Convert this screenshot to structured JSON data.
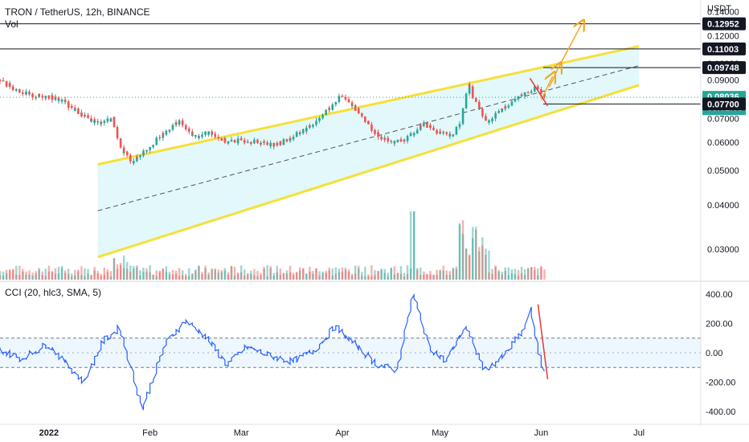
{
  "header": {
    "title": "TRON / TetherUS, 12h, BINANCE",
    "vol_label": "Vol",
    "currency": "USDT"
  },
  "indicator": {
    "label": "CCI (20, hlc3, SMA, 5)"
  },
  "colors": {
    "up": "#26a69a",
    "down": "#ef5350",
    "channel_fill": "#e0f7fa",
    "channel_line": "#f5e03a",
    "cci_line": "#2962ff",
    "arrow": "#f5a623",
    "drawn_red": "#e53935",
    "last_price": "#26a69a"
  },
  "chart_data": [
    {
      "type": "line",
      "title": "TRON / TetherUS, 12h, BINANCE",
      "ylabel": "USDT",
      "ylim": [
        0.025,
        0.145
      ],
      "log_scale": true,
      "y_ticks": [
        "0.14000",
        "0.12000",
        "0.10000",
        "0.09000",
        "0.07000",
        "0.06000",
        "0.05000",
        "0.04000",
        "0.03000"
      ],
      "x_ticks": [
        "2022",
        "Feb",
        "Mar",
        "Apr",
        "May",
        "Jun",
        "Jul"
      ],
      "price_labels": [
        {
          "value": "0.12952",
          "style": "horizontal-line"
        },
        {
          "value": "0.11003",
          "style": "horizontal-line"
        },
        {
          "value": "0.09748",
          "style": "horizontal-line"
        },
        {
          "value": "0.08036",
          "style": "last-price",
          "countdown": "03:02:08"
        },
        {
          "value": "0.07700",
          "style": "horizontal-line"
        }
      ],
      "series": [
        {
          "name": "",
          "x": [
            "2021-12-17",
            "2021-12-22",
            "2021-12-27",
            "2022-01-01",
            "2022-01-06",
            "2022-01-11",
            "2022-01-16",
            "2022-01-21",
            "2022-01-23",
            "2022-01-27",
            "2022-02-01",
            "2022-02-06",
            "2022-02-10",
            "2022-02-15",
            "2022-02-20",
            "2022-02-25",
            "2022-03-02",
            "2022-03-07",
            "2022-03-12",
            "2022-03-17",
            "2022-03-22",
            "2022-03-28",
            "2022-04-01",
            "2022-04-06",
            "2022-04-11",
            "2022-04-16",
            "2022-04-21",
            "2022-04-26",
            "2022-05-01",
            "2022-05-05",
            "2022-05-08",
            "2022-05-10",
            "2022-05-13",
            "2022-05-16",
            "2022-05-20",
            "2022-05-24",
            "2022-05-28",
            "2022-05-31",
            "2022-06-02"
          ],
          "values": [
            0.09,
            0.085,
            0.081,
            0.081,
            0.078,
            0.072,
            0.068,
            0.07,
            0.058,
            0.053,
            0.058,
            0.064,
            0.069,
            0.062,
            0.064,
            0.06,
            0.061,
            0.06,
            0.059,
            0.062,
            0.066,
            0.074,
            0.081,
            0.074,
            0.064,
            0.06,
            0.061,
            0.068,
            0.064,
            0.062,
            0.07,
            0.087,
            0.075,
            0.068,
            0.074,
            0.079,
            0.083,
            0.086,
            0.08
          ]
        }
      ],
      "volume": {
        "name": "Vol",
        "unit": "relative",
        "peaks": [
          "2022-04-23",
          "2022-05-12"
        ]
      },
      "annotations": [
        {
          "type": "rising-channel",
          "from": "2022-01-16",
          "to": "2022-07-01"
        },
        {
          "type": "projection-arrow",
          "from": "0.080",
          "to": "0.12952"
        }
      ]
    },
    {
      "type": "line",
      "title": "CCI (20, hlc3, SMA, 5)",
      "ylim": [
        -400,
        400
      ],
      "y_ticks": [
        "400.00",
        "200.00",
        "0.00",
        "-200.00",
        "-400.00"
      ],
      "bands": [
        100,
        -100
      ],
      "series": [
        {
          "name": "",
          "x": [
            "2021-12-17",
            "2021-12-24",
            "2022-01-01",
            "2022-01-07",
            "2022-01-12",
            "2022-01-18",
            "2022-01-23",
            "2022-01-30",
            "2022-02-06",
            "2022-02-12",
            "2022-02-18",
            "2022-02-25",
            "2022-03-03",
            "2022-03-10",
            "2022-03-17",
            "2022-03-24",
            "2022-03-30",
            "2022-04-06",
            "2022-04-12",
            "2022-04-18",
            "2022-04-23",
            "2022-04-28",
            "2022-05-03",
            "2022-05-09",
            "2022-05-15",
            "2022-05-21",
            "2022-05-27",
            "2022-05-29",
            "2022-06-02"
          ],
          "values": [
            20,
            -40,
            60,
            -80,
            -200,
            80,
            170,
            -380,
            60,
            220,
            120,
            -80,
            40,
            -20,
            -60,
            20,
            180,
            40,
            -80,
            -120,
            400,
            40,
            -60,
            180,
            -120,
            -20,
            160,
            290,
            -150
          ]
        }
      ]
    }
  ]
}
